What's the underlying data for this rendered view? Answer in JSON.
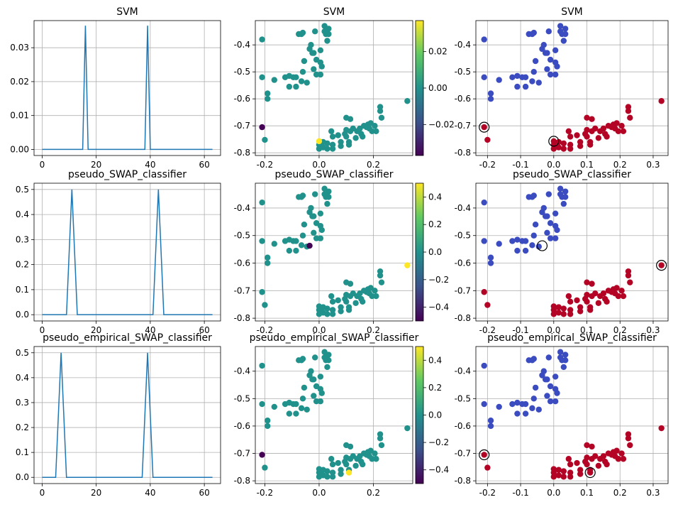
{
  "figure": {
    "row_titles": [
      "SVM",
      "pseudo_SWAP_classifier",
      "pseudo_empirical_SWAP_classifier"
    ]
  },
  "chart_data": [
    {
      "panel": "r0c0",
      "type": "line",
      "title": "SVM",
      "xlim": [
        -3,
        66
      ],
      "ylim": [
        -0.0018,
        0.038
      ],
      "grid": true,
      "x_ticks": [
        0,
        20,
        40,
        60
      ],
      "y_ticks": [
        0.0,
        0.01,
        0.02,
        0.03
      ],
      "x_tick_labels": [
        "0",
        "20",
        "40",
        "60"
      ],
      "y_tick_labels": [
        "0.00",
        "0.01",
        "0.02",
        "0.03"
      ],
      "series": [
        {
          "color": "#1f77b4",
          "x": [
            0,
            15,
            16,
            17,
            38,
            39,
            40,
            63
          ],
          "y": [
            0,
            0,
            0.0365,
            0,
            0,
            0.0365,
            0,
            0
          ]
        }
      ]
    },
    {
      "panel": "r0c1",
      "type": "scatter",
      "title": "SVM",
      "xlim": [
        -0.235,
        0.345
      ],
      "ylim": [
        -0.81,
        -0.31
      ],
      "grid": true,
      "x_ticks": [
        -0.2,
        0.0,
        0.2
      ],
      "y_ticks": [
        -0.4,
        -0.5,
        -0.6,
        -0.7,
        -0.8
      ],
      "x_tick_labels": [
        "-0.2",
        "0.0",
        "0.2"
      ],
      "y_tick_labels": [
        "-0.4",
        "-0.5",
        "-0.6",
        "-0.7",
        "-0.8"
      ],
      "colorbar": {
        "min": -0.037,
        "max": 0.037,
        "ticks": [
          0.02,
          0.0,
          -0.02
        ],
        "tick_labels": [
          "0.02",
          "0.00",
          "−0.02"
        ],
        "colormap": "viridis"
      },
      "highlight": [
        {
          "x": -0.21,
          "y": -0.705,
          "value": -0.037
        },
        {
          "x": 0.0,
          "y": -0.757,
          "value": 0.037
        }
      ]
    },
    {
      "panel": "r0c2",
      "type": "scatter",
      "title": "SVM",
      "xlim": [
        -0.235,
        0.345
      ],
      "ylim": [
        -0.81,
        -0.31
      ],
      "grid": true,
      "x_ticks": [
        -0.2,
        -0.1,
        0.0,
        0.1,
        0.2,
        0.3
      ],
      "y_ticks": [
        -0.4,
        -0.5,
        -0.6,
        -0.7,
        -0.8
      ],
      "x_tick_labels": [
        "-0.2",
        "-0.1",
        "0.0",
        "0.1",
        "0.2",
        "0.3"
      ],
      "y_tick_labels": [
        "-0.4",
        "-0.5",
        "-0.6",
        "-0.7",
        "-0.8"
      ],
      "class_colors": {
        "class_a": "#3b4cc0",
        "class_b": "#b40426"
      },
      "circled": [
        {
          "x": -0.21,
          "y": -0.705
        },
        {
          "x": 0.0,
          "y": -0.757
        }
      ]
    },
    {
      "panel": "r1c0",
      "type": "line",
      "title": "pseudo_SWAP_classifier",
      "xlim": [
        -3,
        66
      ],
      "ylim": [
        -0.025,
        0.525
      ],
      "grid": true,
      "x_ticks": [
        0,
        20,
        40,
        60
      ],
      "y_ticks": [
        0.0,
        0.1,
        0.2,
        0.3,
        0.4,
        0.5
      ],
      "x_tick_labels": [
        "0",
        "20",
        "40",
        "60"
      ],
      "y_tick_labels": [
        "0.0",
        "0.1",
        "0.2",
        "0.3",
        "0.4",
        "0.5"
      ],
      "series": [
        {
          "color": "#1f77b4",
          "x": [
            0,
            9,
            11,
            13,
            41,
            43,
            45,
            63
          ],
          "y": [
            0,
            0,
            0.5,
            0,
            0,
            0.5,
            0,
            0
          ]
        }
      ]
    },
    {
      "panel": "r1c1",
      "type": "scatter",
      "title": "pseudo_SWAP_classifier",
      "xlim": [
        -0.235,
        0.345
      ],
      "ylim": [
        -0.81,
        -0.31
      ],
      "grid": true,
      "x_ticks": [
        -0.2,
        0.0,
        0.2
      ],
      "y_ticks": [
        -0.4,
        -0.5,
        -0.6,
        -0.7,
        -0.8
      ],
      "x_tick_labels": [
        "-0.2",
        "0.0",
        "0.2"
      ],
      "y_tick_labels": [
        "-0.4",
        "-0.5",
        "-0.6",
        "-0.7",
        "-0.8"
      ],
      "colorbar": {
        "min": -0.5,
        "max": 0.5,
        "ticks": [
          0.4,
          0.2,
          0.0,
          -0.2,
          -0.4
        ],
        "tick_labels": [
          "0.4",
          "0.2",
          "0.0",
          "−0.2",
          "−0.4"
        ],
        "colormap": "viridis"
      },
      "highlight": [
        {
          "x": -0.035,
          "y": -0.537,
          "value": -0.5
        },
        {
          "x": 0.325,
          "y": -0.608,
          "value": 0.5
        }
      ]
    },
    {
      "panel": "r1c2",
      "type": "scatter",
      "title": "pseudo_SWAP_classifier",
      "xlim": [
        -0.235,
        0.345
      ],
      "ylim": [
        -0.81,
        -0.31
      ],
      "grid": true,
      "x_ticks": [
        -0.2,
        -0.1,
        0.0,
        0.1,
        0.2,
        0.3
      ],
      "y_ticks": [
        -0.4,
        -0.5,
        -0.6,
        -0.7,
        -0.8
      ],
      "x_tick_labels": [
        "-0.2",
        "-0.1",
        "0.0",
        "0.1",
        "0.2",
        "0.3"
      ],
      "y_tick_labels": [
        "-0.4",
        "-0.5",
        "-0.6",
        "-0.7",
        "-0.8"
      ],
      "class_colors": {
        "class_a": "#3b4cc0",
        "class_b": "#b40426"
      },
      "circled": [
        {
          "x": -0.035,
          "y": -0.537
        },
        {
          "x": 0.325,
          "y": -0.608
        }
      ]
    },
    {
      "panel": "r2c0",
      "type": "line",
      "title": "pseudo_empirical_SWAP_classifier",
      "xlim": [
        -3,
        66
      ],
      "ylim": [
        -0.025,
        0.525
      ],
      "grid": true,
      "x_ticks": [
        0,
        20,
        40,
        60
      ],
      "y_ticks": [
        0.0,
        0.1,
        0.2,
        0.3,
        0.4,
        0.5
      ],
      "x_tick_labels": [
        "0",
        "20",
        "40",
        "60"
      ],
      "y_tick_labels": [
        "0.0",
        "0.1",
        "0.2",
        "0.3",
        "0.4",
        "0.5"
      ],
      "series": [
        {
          "color": "#1f77b4",
          "x": [
            0,
            5,
            7,
            9,
            37,
            39,
            41,
            63
          ],
          "y": [
            0,
            0,
            0.5,
            0,
            0,
            0.5,
            0,
            0
          ]
        }
      ]
    },
    {
      "panel": "r2c1",
      "type": "scatter",
      "title": "pseudo_empirical_SWAP_classifier",
      "xlim": [
        -0.235,
        0.345
      ],
      "ylim": [
        -0.81,
        -0.31
      ],
      "grid": true,
      "x_ticks": [
        -0.2,
        0.0,
        0.2
      ],
      "y_ticks": [
        -0.4,
        -0.5,
        -0.6,
        -0.7,
        -0.8
      ],
      "x_tick_labels": [
        "-0.2",
        "0.0",
        "0.2"
      ],
      "y_tick_labels": [
        "-0.4",
        "-0.5",
        "-0.6",
        "-0.7",
        "-0.8"
      ],
      "colorbar": {
        "min": -0.5,
        "max": 0.5,
        "ticks": [
          0.4,
          0.2,
          0.0,
          -0.2,
          -0.4
        ],
        "tick_labels": [
          "0.4",
          "0.2",
          "0.0",
          "−0.2",
          "−0.4"
        ],
        "colormap": "viridis"
      },
      "highlight": [
        {
          "x": -0.21,
          "y": -0.705,
          "value": -0.5
        },
        {
          "x": 0.11,
          "y": -0.77,
          "value": 0.5
        }
      ]
    },
    {
      "panel": "r2c2",
      "type": "scatter",
      "title": "pseudo_empirical_SWAP_classifier",
      "xlim": [
        -0.235,
        0.345
      ],
      "ylim": [
        -0.81,
        -0.31
      ],
      "grid": true,
      "x_ticks": [
        -0.2,
        -0.1,
        0.0,
        0.1,
        0.2,
        0.3
      ],
      "y_ticks": [
        -0.4,
        -0.5,
        -0.6,
        -0.7,
        -0.8
      ],
      "x_tick_labels": [
        "-0.2",
        "-0.1",
        "0.0",
        "0.1",
        "0.2",
        "0.3"
      ],
      "y_tick_labels": [
        "-0.4",
        "-0.5",
        "-0.6",
        "-0.7",
        "-0.8"
      ],
      "class_colors": {
        "class_a": "#3b4cc0",
        "class_b": "#b40426"
      },
      "circled": [
        {
          "x": -0.21,
          "y": -0.705
        },
        {
          "x": 0.11,
          "y": -0.77
        }
      ]
    }
  ],
  "scatter_points": {
    "class_a": [
      [
        -0.21,
        -0.38
      ],
      [
        -0.21,
        -0.52
      ],
      [
        -0.19,
        -0.58
      ],
      [
        -0.19,
        -0.6
      ],
      [
        -0.165,
        -0.53
      ],
      [
        -0.125,
        -0.52
      ],
      [
        -0.11,
        -0.515
      ],
      [
        -0.11,
        -0.555
      ],
      [
        -0.095,
        -0.52
      ],
      [
        -0.085,
        -0.52
      ],
      [
        -0.085,
        -0.555
      ],
      [
        -0.075,
        -0.36
      ],
      [
        -0.065,
        -0.36
      ],
      [
        -0.06,
        -0.355
      ],
      [
        -0.06,
        -0.5
      ],
      [
        -0.065,
        -0.535
      ],
      [
        -0.055,
        -0.46
      ],
      [
        -0.045,
        -0.54
      ],
      [
        -0.035,
        -0.415
      ],
      [
        -0.03,
        -0.4
      ],
      [
        -0.025,
        -0.43
      ],
      [
        -0.015,
        -0.35
      ],
      [
        -0.02,
        -0.43
      ],
      [
        -0.02,
        -0.49
      ],
      [
        -0.01,
        -0.455
      ],
      [
        0.005,
        -0.42
      ],
      [
        0.005,
        -0.465
      ],
      [
        0.01,
        -0.48
      ],
      [
        0.02,
        -0.33
      ],
      [
        0.02,
        -0.35
      ],
      [
        0.025,
        -0.36
      ],
      [
        0.035,
        -0.34
      ],
      [
        0.035,
        -0.36
      ],
      [
        0.03,
        -0.385
      ],
      [
        0.005,
        -0.51
      ],
      [
        -0.01,
        -0.51
      ]
    ],
    "class_b": [
      [
        0.0,
        -0.757
      ],
      [
        0.0,
        -0.77
      ],
      [
        0.0,
        -0.785
      ],
      [
        0.015,
        -0.76
      ],
      [
        0.015,
        -0.78
      ],
      [
        0.03,
        -0.765
      ],
      [
        0.03,
        -0.785
      ],
      [
        0.045,
        -0.72
      ],
      [
        0.05,
        -0.74
      ],
      [
        0.05,
        -0.77
      ],
      [
        0.05,
        -0.785
      ],
      [
        0.07,
        -0.735
      ],
      [
        0.08,
        -0.76
      ],
      [
        0.08,
        -0.775
      ],
      [
        0.095,
        -0.73
      ],
      [
        0.1,
        -0.67
      ],
      [
        0.1,
        -0.715
      ],
      [
        0.1,
        -0.74
      ],
      [
        0.11,
        -0.76
      ],
      [
        0.11,
        -0.77
      ],
      [
        0.115,
        -0.675
      ],
      [
        0.115,
        -0.72
      ],
      [
        0.125,
        -0.71
      ],
      [
        0.135,
        -0.745
      ],
      [
        0.14,
        -0.72
      ],
      [
        0.15,
        -0.71
      ],
      [
        0.155,
        -0.73
      ],
      [
        0.16,
        -0.74
      ],
      [
        0.165,
        -0.7
      ],
      [
        0.175,
        -0.705
      ],
      [
        0.18,
        -0.695
      ],
      [
        0.185,
        -0.71
      ],
      [
        0.19,
        -0.69
      ],
      [
        0.195,
        -0.72
      ],
      [
        0.205,
        -0.7
      ],
      [
        0.21,
        -0.72
      ],
      [
        0.225,
        -0.63
      ],
      [
        0.225,
        -0.645
      ],
      [
        0.23,
        -0.67
      ],
      [
        0.325,
        -0.608
      ],
      [
        -0.2,
        -0.752
      ],
      [
        -0.21,
        -0.705
      ]
    ]
  }
}
